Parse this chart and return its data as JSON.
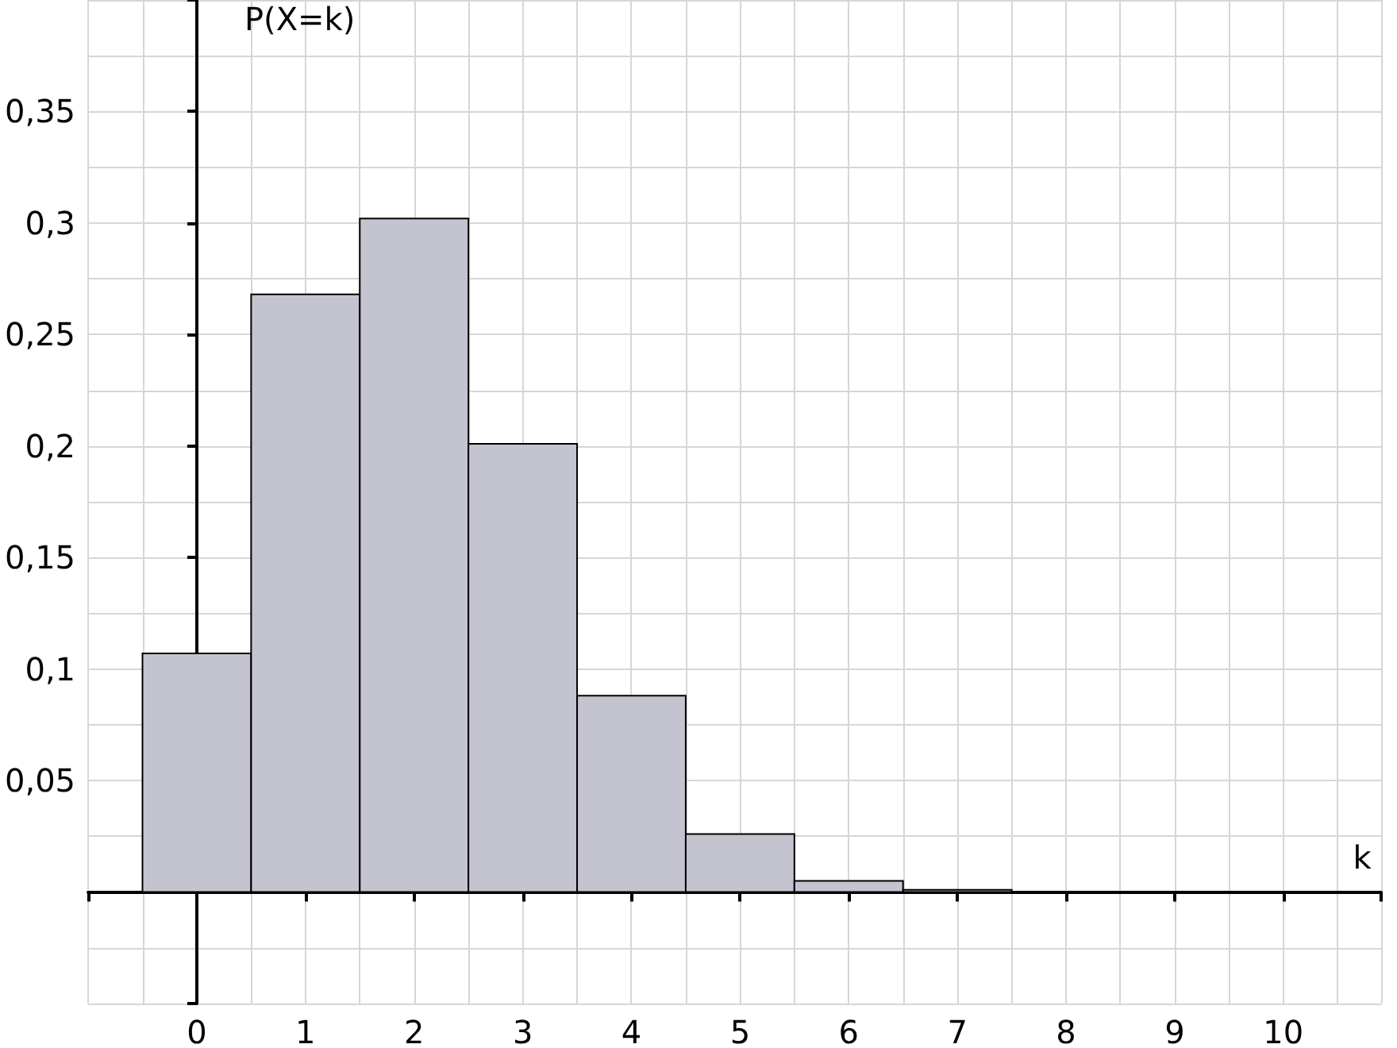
{
  "chart_data": {
    "type": "histogram",
    "xlabel": "k",
    "ylabel": "P(X=k)",
    "bins": [
      -0.5,
      0.5,
      1.5,
      2.5,
      3.5,
      4.5,
      5.5,
      6.5,
      7.5
    ],
    "values": [
      0.107,
      0.268,
      0.302,
      0.201,
      0.088,
      0.026,
      0.005,
      0.001
    ],
    "color": "#c4c4d0",
    "xlim": [
      -1,
      10.9
    ],
    "ylim": [
      -0.05,
      0.4
    ],
    "xticks": [
      0,
      1,
      2,
      3,
      4,
      5,
      6,
      7,
      8,
      9,
      10
    ],
    "yticks": [
      {
        "value": 0.05,
        "label": "0,05"
      },
      {
        "value": 0.1,
        "label": "0,1"
      },
      {
        "value": 0.15,
        "label": "0,15"
      },
      {
        "value": 0.2,
        "label": "0,2"
      },
      {
        "value": 0.25,
        "label": "0,25"
      },
      {
        "value": 0.3,
        "label": "0,3"
      },
      {
        "value": 0.35,
        "label": "0,35"
      }
    ],
    "grid": true
  }
}
